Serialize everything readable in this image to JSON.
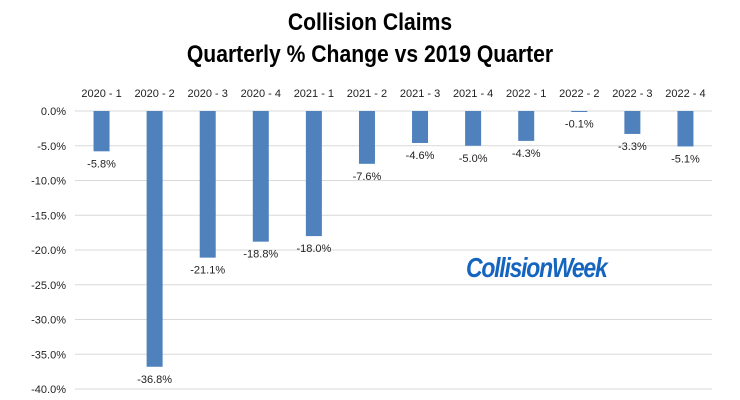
{
  "chart_data": {
    "type": "bar",
    "title": "Collision Claims",
    "subtitle": "Quarterly % Change vs 2019 Quarter",
    "categories": [
      "2020 - 1",
      "2020 - 2",
      "2020 - 3",
      "2020 - 4",
      "2021 - 1",
      "2021 - 2",
      "2021 - 3",
      "2021 - 4",
      "2022 - 1",
      "2022 - 2",
      "2022 - 3",
      "2022 - 4"
    ],
    "values": [
      -5.8,
      -36.8,
      -21.1,
      -18.8,
      -18.0,
      -7.6,
      -4.6,
      -5.0,
      -4.3,
      -0.1,
      -3.3,
      -5.1
    ],
    "data_labels": [
      "-5.8%",
      "-36.8%",
      "-21.1%",
      "-18.8%",
      "-18.0%",
      "-7.6%",
      "-4.6%",
      "-5.0%",
      "-4.3%",
      "-0.1%",
      "-3.3%",
      "-5.1%"
    ],
    "yticks": [
      0,
      -5,
      -10,
      -15,
      -20,
      -25,
      -30,
      -35,
      -40
    ],
    "ytick_labels": [
      "0.0%",
      "-5.0%",
      "-10.0%",
      "-15.0%",
      "-20.0%",
      "-25.0%",
      "-30.0%",
      "-35.0%",
      "-40.0%"
    ],
    "ylim": [
      -40,
      0
    ],
    "grid": true,
    "category_labels_position": "top",
    "bar_color": "#4f81bd",
    "grid_color": "#d9d9d9"
  },
  "watermark": {
    "text": "CollisionWeek",
    "color": "#1565c0"
  }
}
